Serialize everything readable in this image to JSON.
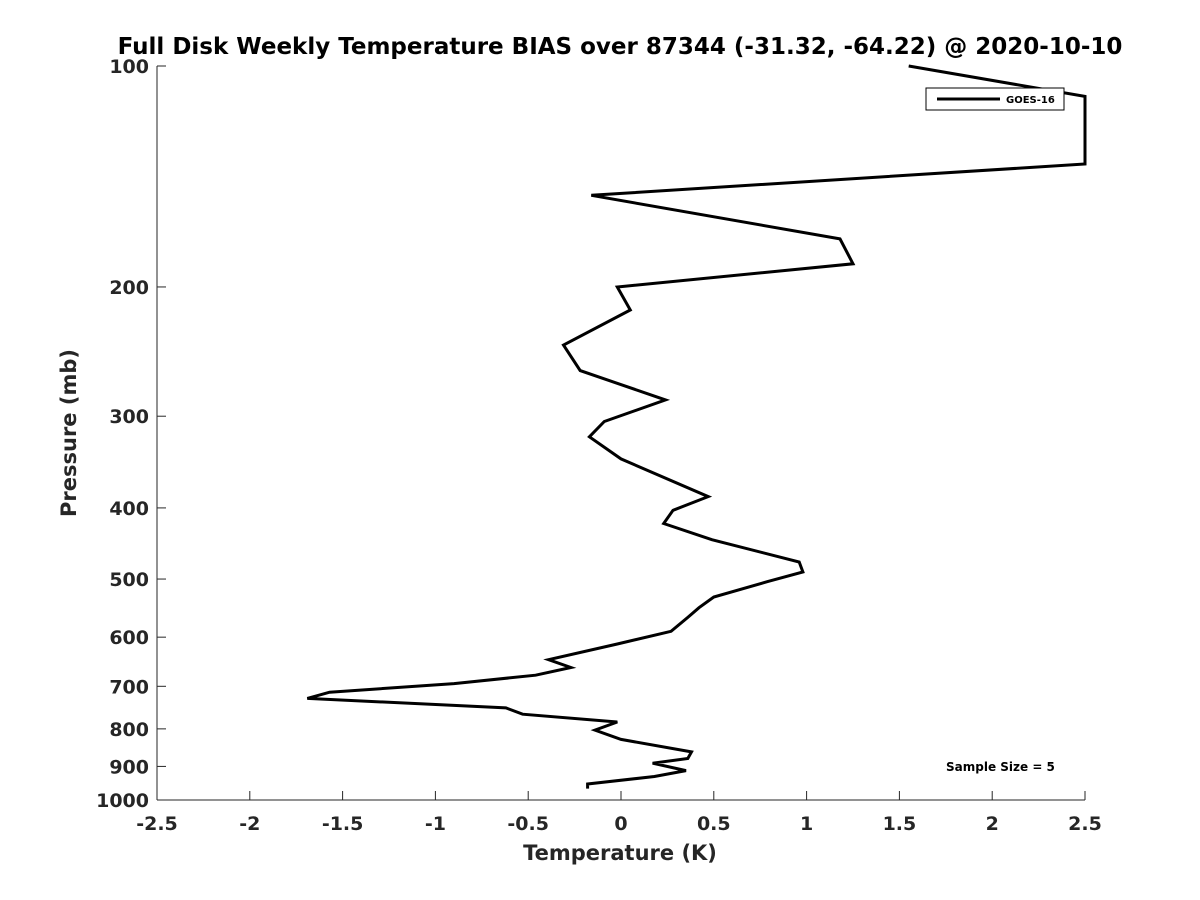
{
  "chart_data": {
    "type": "line",
    "title": "Full Disk Weekly Temperature BIAS over 87344 (-31.32, -64.22) @ 2020-10-10",
    "xlabel": "Temperature (K)",
    "ylabel": "Pressure (mb)",
    "xlim": [
      -2.5,
      2.5
    ],
    "ylim": [
      100,
      1000
    ],
    "y_scale": "log",
    "y_reversed": true,
    "x_ticks": [
      -2.5,
      -2,
      -1.5,
      -1,
      -0.5,
      0,
      0.5,
      1,
      1.5,
      2,
      2.5
    ],
    "x_tick_labels": [
      "-2.5",
      "-2",
      "-1.5",
      "-1",
      "-0.5",
      "0",
      "0.5",
      "1",
      "1.5",
      "2",
      "2.5"
    ],
    "y_ticks": [
      100,
      200,
      300,
      400,
      500,
      600,
      700,
      800,
      900,
      1000
    ],
    "y_tick_labels": [
      "100",
      "200",
      "300",
      "400",
      "500",
      "600",
      "700",
      "800",
      "900",
      "1000"
    ],
    "grid": false,
    "legend_position": "top-right",
    "annotation": "Sample Size = 5",
    "series": [
      {
        "name": "GOES-16",
        "color": "#000000",
        "points": [
          [
            1.55,
            100
          ],
          [
            2.5,
            110
          ],
          [
            2.5,
            136
          ],
          [
            -0.16,
            150
          ],
          [
            1.18,
            172
          ],
          [
            1.25,
            186
          ],
          [
            -0.02,
            200
          ],
          [
            0.05,
            215
          ],
          [
            -0.31,
            240
          ],
          [
            -0.22,
            260
          ],
          [
            0.24,
            285
          ],
          [
            -0.09,
            305
          ],
          [
            -0.17,
            320
          ],
          [
            0.0,
            343
          ],
          [
            0.47,
            386
          ],
          [
            0.28,
            403
          ],
          [
            0.23,
            420
          ],
          [
            0.49,
            442
          ],
          [
            0.96,
            474
          ],
          [
            0.98,
            489
          ],
          [
            0.79,
            504
          ],
          [
            0.5,
            529
          ],
          [
            0.42,
            547
          ],
          [
            0.36,
            564
          ],
          [
            0.27,
            589
          ],
          [
            -0.02,
            613
          ],
          [
            -0.39,
            644
          ],
          [
            -0.27,
            660
          ],
          [
            -0.46,
            676
          ],
          [
            -0.9,
            694
          ],
          [
            -1.57,
            713
          ],
          [
            -1.69,
            727
          ],
          [
            -0.62,
            749
          ],
          [
            -0.53,
            764
          ],
          [
            -0.02,
            783
          ],
          [
            -0.14,
            803
          ],
          [
            0.0,
            827
          ],
          [
            0.38,
            860
          ],
          [
            0.36,
            878
          ],
          [
            0.17,
            891
          ],
          [
            0.35,
            912
          ],
          [
            0.18,
            929
          ],
          [
            -0.18,
            951
          ],
          [
            -0.18,
            965
          ]
        ]
      }
    ]
  }
}
